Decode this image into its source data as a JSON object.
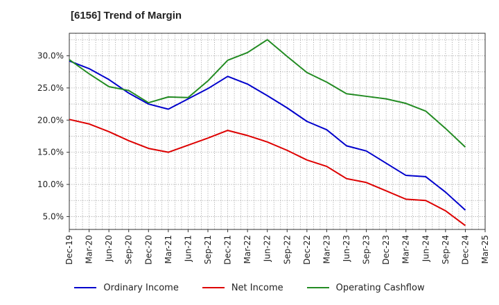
{
  "title": "[6156]  Trend of Margin",
  "chart_data": {
    "type": "line",
    "title": "[6156]  Trend of Margin",
    "xlabel": "",
    "ylabel": "",
    "x_tick_labels": [
      "Dec-19",
      "Mar-20",
      "Jun-20",
      "Sep-20",
      "Dec-20",
      "Mar-21",
      "Jun-21",
      "Sep-21",
      "Dec-21",
      "Mar-22",
      "Jun-22",
      "Sep-22",
      "Dec-22",
      "Mar-23",
      "Jun-23",
      "Sep-23",
      "Dec-23",
      "Mar-24",
      "Jun-24",
      "Sep-24",
      "Dec-24",
      "Mar-25"
    ],
    "y_tick_labels": [
      "5.0%",
      "10.0%",
      "15.0%",
      "20.0%",
      "25.0%",
      "30.0%"
    ],
    "y_ticks": [
      5,
      10,
      15,
      20,
      25,
      30
    ],
    "ylim": [
      3.0,
      33.5
    ],
    "grid": true,
    "legend_position": "bottom",
    "series": [
      {
        "name": "Ordinary Income",
        "color": "#0000cc",
        "x": [
          "Dec-19",
          "Mar-20",
          "Jun-20",
          "Sep-20",
          "Dec-20",
          "Mar-21",
          "Jun-21",
          "Sep-21",
          "Dec-21",
          "Mar-22",
          "Jun-22",
          "Sep-22",
          "Dec-22",
          "Mar-23",
          "Jun-23",
          "Sep-23",
          "Dec-23",
          "Mar-24",
          "Jun-24",
          "Sep-24",
          "Dec-24"
        ],
        "values": [
          29.2,
          28.0,
          26.3,
          24.2,
          22.5,
          21.7,
          23.3,
          24.9,
          26.8,
          25.6,
          23.8,
          21.9,
          19.8,
          18.5,
          16.0,
          15.2,
          13.3,
          11.4,
          11.2,
          8.8,
          6.0
        ]
      },
      {
        "name": "Net Income",
        "color": "#dd0000",
        "x": [
          "Dec-19",
          "Mar-20",
          "Jun-20",
          "Sep-20",
          "Dec-20",
          "Mar-21",
          "Jun-21",
          "Sep-21",
          "Dec-21",
          "Mar-22",
          "Jun-22",
          "Sep-22",
          "Dec-22",
          "Mar-23",
          "Jun-23",
          "Sep-23",
          "Dec-23",
          "Mar-24",
          "Jun-24",
          "Sep-24",
          "Dec-24"
        ],
        "values": [
          20.1,
          19.4,
          18.2,
          16.8,
          15.6,
          15.0,
          16.1,
          17.2,
          18.4,
          17.6,
          16.6,
          15.3,
          13.8,
          12.8,
          10.9,
          10.3,
          9.0,
          7.7,
          7.5,
          5.9,
          3.6
        ]
      },
      {
        "name": "Operating Cashflow",
        "color": "#228b22",
        "x": [
          "Dec-19",
          "Mar-20",
          "Jun-20",
          "Sep-20",
          "Dec-20",
          "Mar-21",
          "Jun-21",
          "Sep-21",
          "Dec-21",
          "Mar-22",
          "Jun-22",
          "Sep-22",
          "Dec-22",
          "Mar-23",
          "Jun-23",
          "Sep-23",
          "Dec-23",
          "Mar-24",
          "Jun-24",
          "Sep-24",
          "Dec-24"
        ],
        "values": [
          29.4,
          27.2,
          25.2,
          24.6,
          22.7,
          23.6,
          23.5,
          26.1,
          29.3,
          30.5,
          32.5,
          29.9,
          27.4,
          25.9,
          24.1,
          23.7,
          23.3,
          22.6,
          21.4,
          18.7,
          15.8
        ]
      }
    ]
  }
}
